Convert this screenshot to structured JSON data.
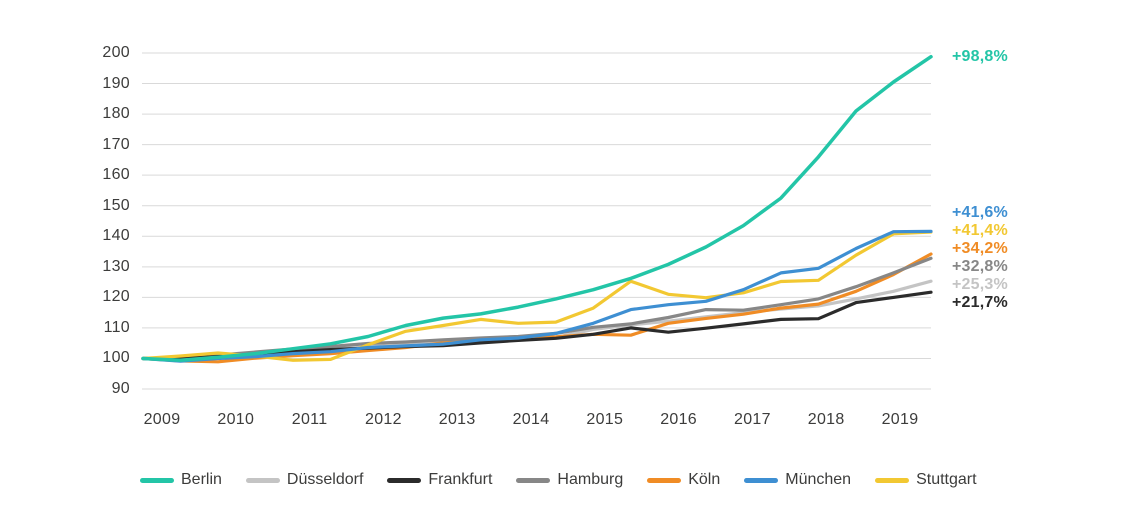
{
  "chart_data": {
    "type": "line",
    "title": "",
    "x_years": [
      "2009",
      "2010",
      "2011",
      "2012",
      "2013",
      "2014",
      "2015",
      "2016",
      "2017",
      "2018",
      "2019"
    ],
    "points_per_year": 2,
    "yticks": [
      200,
      190,
      180,
      170,
      160,
      150,
      140,
      130,
      120,
      110,
      100,
      90
    ],
    "ylim": [
      90,
      200
    ],
    "grid": "horizontal-only",
    "legend_position": "bottom",
    "axis_text_color": "#3c3c3b",
    "gridline_color": "#d9d9d9",
    "series": [
      {
        "name": "Berlin",
        "color": "#23c5a7",
        "end_label": "+98,8%",
        "values": [
          100,
          99.4,
          100.4,
          101.6,
          103.2,
          104.8,
          107.2,
          110.8,
          113.2,
          114.6,
          116.8,
          119.5,
          122.5,
          126.2,
          130.8,
          136.5,
          143.5,
          152.5,
          166.0,
          181.0,
          190.5,
          198.8
        ]
      },
      {
        "name": "Düsseldorf",
        "color": "#c4c4c4",
        "end_label": "+25,3%",
        "values": [
          100,
          100.2,
          100.8,
          101.6,
          102.4,
          103.0,
          103.8,
          104.4,
          105.2,
          106.4,
          106.2,
          106.9,
          109.5,
          111.0,
          112.2,
          113.6,
          115.0,
          116.2,
          117.2,
          119.5,
          122.0,
          125.3
        ]
      },
      {
        "name": "Frankfurt",
        "color": "#2b2b2b",
        "end_label": "+21,7%",
        "values": [
          100,
          100.0,
          100.6,
          101.4,
          102.2,
          102.9,
          103.4,
          103.9,
          104.2,
          105.1,
          105.9,
          106.6,
          107.9,
          110.0,
          108.6,
          109.9,
          111.3,
          112.8,
          113.0,
          118.3,
          120.0,
          121.7
        ]
      },
      {
        "name": "Hamburg",
        "color": "#878787",
        "end_label": "+32,8%",
        "values": [
          100,
          100.4,
          101.1,
          102.1,
          103.1,
          103.9,
          104.9,
          105.4,
          106.1,
          106.7,
          107.2,
          108.2,
          110.2,
          111.3,
          113.4,
          116.0,
          115.8,
          117.6,
          119.5,
          123.5,
          128.0,
          132.8
        ]
      },
      {
        "name": "Köln",
        "color": "#f08c25",
        "end_label": "+34,2%",
        "values": [
          100,
          99.2,
          98.9,
          100.1,
          100.9,
          101.6,
          102.6,
          103.6,
          105.1,
          105.6,
          106.6,
          107.1,
          107.9,
          107.6,
          111.5,
          113.1,
          114.5,
          116.5,
          117.8,
          122.0,
          127.5,
          134.2
        ]
      },
      {
        "name": "München",
        "color": "#3e8fd2",
        "end_label": "+41,6%",
        "values": [
          100,
          99.1,
          100.0,
          100.6,
          101.6,
          102.2,
          103.6,
          104.1,
          104.7,
          106.1,
          106.7,
          108.2,
          111.5,
          116.0,
          117.6,
          118.7,
          122.5,
          128.0,
          129.5,
          136.0,
          141.5,
          141.6
        ]
      },
      {
        "name": "Stuttgart",
        "color": "#f2c832",
        "end_label": "+41,4%",
        "values": [
          100,
          100.8,
          101.8,
          100.8,
          99.4,
          99.7,
          104.5,
          108.9,
          110.8,
          112.8,
          111.5,
          111.9,
          116.5,
          125.3,
          121.0,
          119.9,
          121.5,
          125.2,
          125.6,
          133.8,
          140.8,
          141.4
        ]
      }
    ]
  }
}
